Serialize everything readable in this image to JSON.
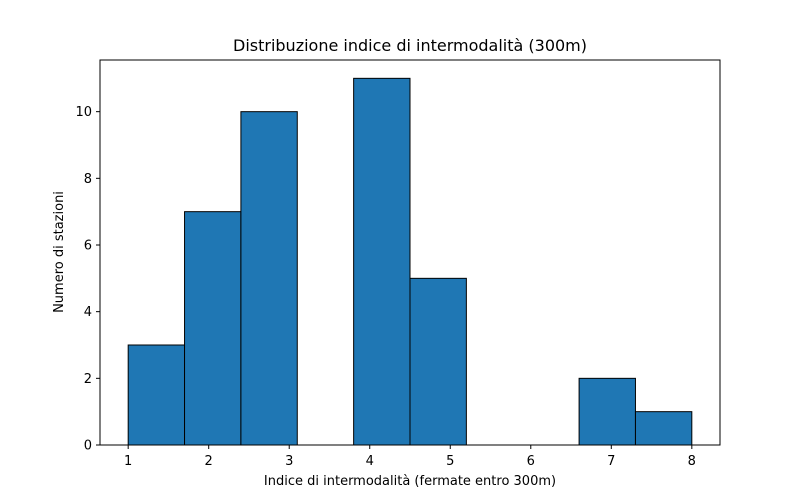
{
  "chart_data": {
    "type": "bar",
    "title": "Distribuzione indice di intermodalità (300m)",
    "xlabel": "Indice di intermodalità (fermate entro 300m)",
    "ylabel": "Numero di stazioni",
    "bins": [
      {
        "x0": 1.0,
        "x1": 1.7,
        "count": 3
      },
      {
        "x0": 1.7,
        "x1": 2.4,
        "count": 7
      },
      {
        "x0": 2.4,
        "x1": 3.1,
        "count": 10
      },
      {
        "x0": 3.1,
        "x1": 3.8,
        "count": 0
      },
      {
        "x0": 3.8,
        "x1": 4.5,
        "count": 11
      },
      {
        "x0": 4.5,
        "x1": 5.2,
        "count": 5
      },
      {
        "x0": 5.2,
        "x1": 5.9,
        "count": 0
      },
      {
        "x0": 5.9,
        "x1": 6.6,
        "count": 0
      },
      {
        "x0": 6.6,
        "x1": 7.3,
        "count": 2
      },
      {
        "x0": 7.3,
        "x1": 8.0,
        "count": 1
      }
    ],
    "xlim": [
      0.65,
      8.35
    ],
    "ylim": [
      0,
      11.55
    ],
    "xticks": [
      1,
      2,
      3,
      4,
      5,
      6,
      7,
      8
    ],
    "yticks": [
      0,
      2,
      4,
      6,
      8,
      10
    ],
    "bar_color": "#1f77b4",
    "edge_color": "#000000",
    "grid": false
  }
}
